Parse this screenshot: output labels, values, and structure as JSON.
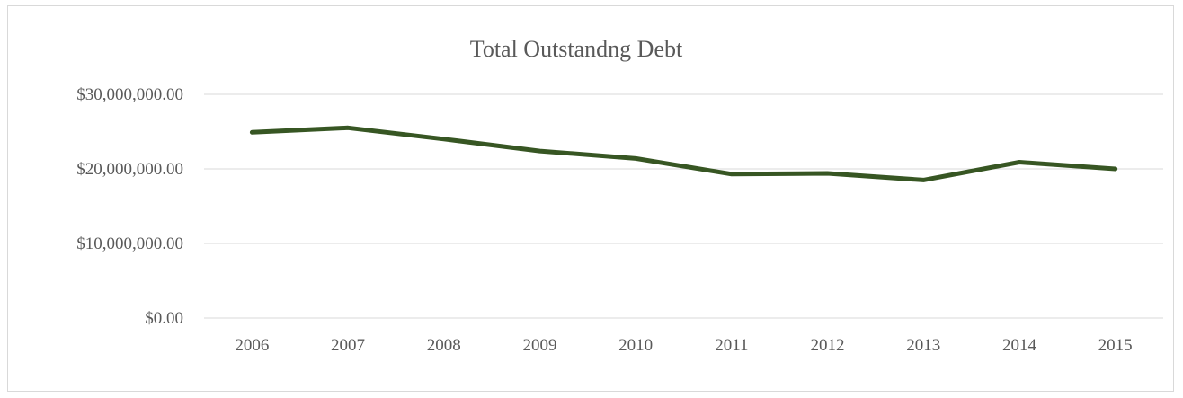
{
  "chart_data": {
    "type": "line",
    "title": "Total Outstandng Debt",
    "xlabel": "",
    "ylabel": "",
    "categories": [
      "2006",
      "2007",
      "2008",
      "2009",
      "2010",
      "2011",
      "2012",
      "2013",
      "2014",
      "2015"
    ],
    "series": [
      {
        "values": [
          24900000,
          25500000,
          24000000,
          22400000,
          21400000,
          19300000,
          19400000,
          18500000,
          20900000,
          20000000
        ],
        "color": "#375623"
      }
    ],
    "ylim": [
      0,
      30000000
    ],
    "yticks": [
      {
        "value": 0,
        "label": "$0.00"
      },
      {
        "value": 10000000,
        "label": "$10,000,000.00"
      },
      {
        "value": 20000000,
        "label": "$20,000,000.00"
      },
      {
        "value": 30000000,
        "label": "$30,000,000.00"
      }
    ],
    "grid": true,
    "legend": "none"
  }
}
